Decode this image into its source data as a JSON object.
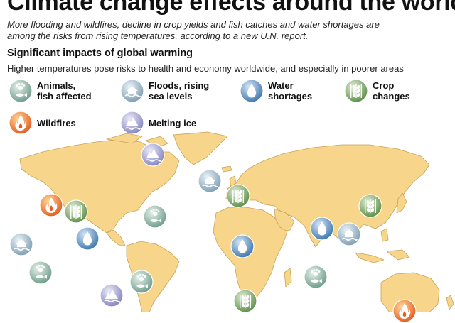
{
  "header": {
    "title": "Climate change effects around the world",
    "subtitle": "More flooding and wildfires, decline in crop yields and fish catches and water shortages are among the risks from rising temperatures, according to a new U.N. report."
  },
  "section": {
    "title": "Significant impacts of global warming",
    "subtitle": "Higher temperatures pose risks to health and economy worldwide, and especially in poorer areas"
  },
  "legend": [
    {
      "key": "animals",
      "label": "Animals,\nfish affected",
      "icon": "animal-paw-fish-icon",
      "color": "#6e9c8a"
    },
    {
      "key": "floods",
      "label": "Floods, rising\nsea levels",
      "icon": "flood-house-icon",
      "color": "#7f9eb3"
    },
    {
      "key": "water",
      "label": "Water\nshortages",
      "icon": "water-drop-icon",
      "color": "#3f77ae"
    },
    {
      "key": "crops",
      "label": "Crop\nchanges",
      "icon": "wheat-icon",
      "color": "#5e8f49"
    },
    {
      "key": "wildfires",
      "label": "Wildfires",
      "icon": "flame-icon",
      "color": "#e55b1e"
    },
    {
      "key": "ice",
      "label": "Melting ice",
      "icon": "iceberg-icon",
      "color": "#8585c0"
    }
  ],
  "colors": {
    "land": "#f7d58b",
    "land_border": "#c9a35a",
    "ocean": "#ffffff"
  },
  "markers": [
    {
      "key": "ice",
      "region": "Canadian Arctic"
    },
    {
      "key": "floods",
      "region": "Greenland / North Atlantic"
    },
    {
      "key": "crops",
      "region": "Europe"
    },
    {
      "key": "wildfires",
      "region": "Western North America"
    },
    {
      "key": "crops",
      "region": "Central North America"
    },
    {
      "key": "animals",
      "region": "North Atlantic"
    },
    {
      "key": "water",
      "region": "Mexico / Southwest US"
    },
    {
      "key": "floods",
      "region": "Eastern Pacific"
    },
    {
      "key": "animals",
      "region": "Central Pacific"
    },
    {
      "key": "water",
      "region": "North Africa"
    },
    {
      "key": "water",
      "region": "South Asia"
    },
    {
      "key": "floods",
      "region": "Southeast Asia"
    },
    {
      "key": "crops",
      "region": "East Asia"
    },
    {
      "key": "animals",
      "region": "Indian Ocean"
    },
    {
      "key": "animals",
      "region": "South America"
    },
    {
      "key": "ice",
      "region": "Andes"
    },
    {
      "key": "crops",
      "region": "Southern Africa"
    },
    {
      "key": "wildfires",
      "region": "Australia"
    }
  ]
}
